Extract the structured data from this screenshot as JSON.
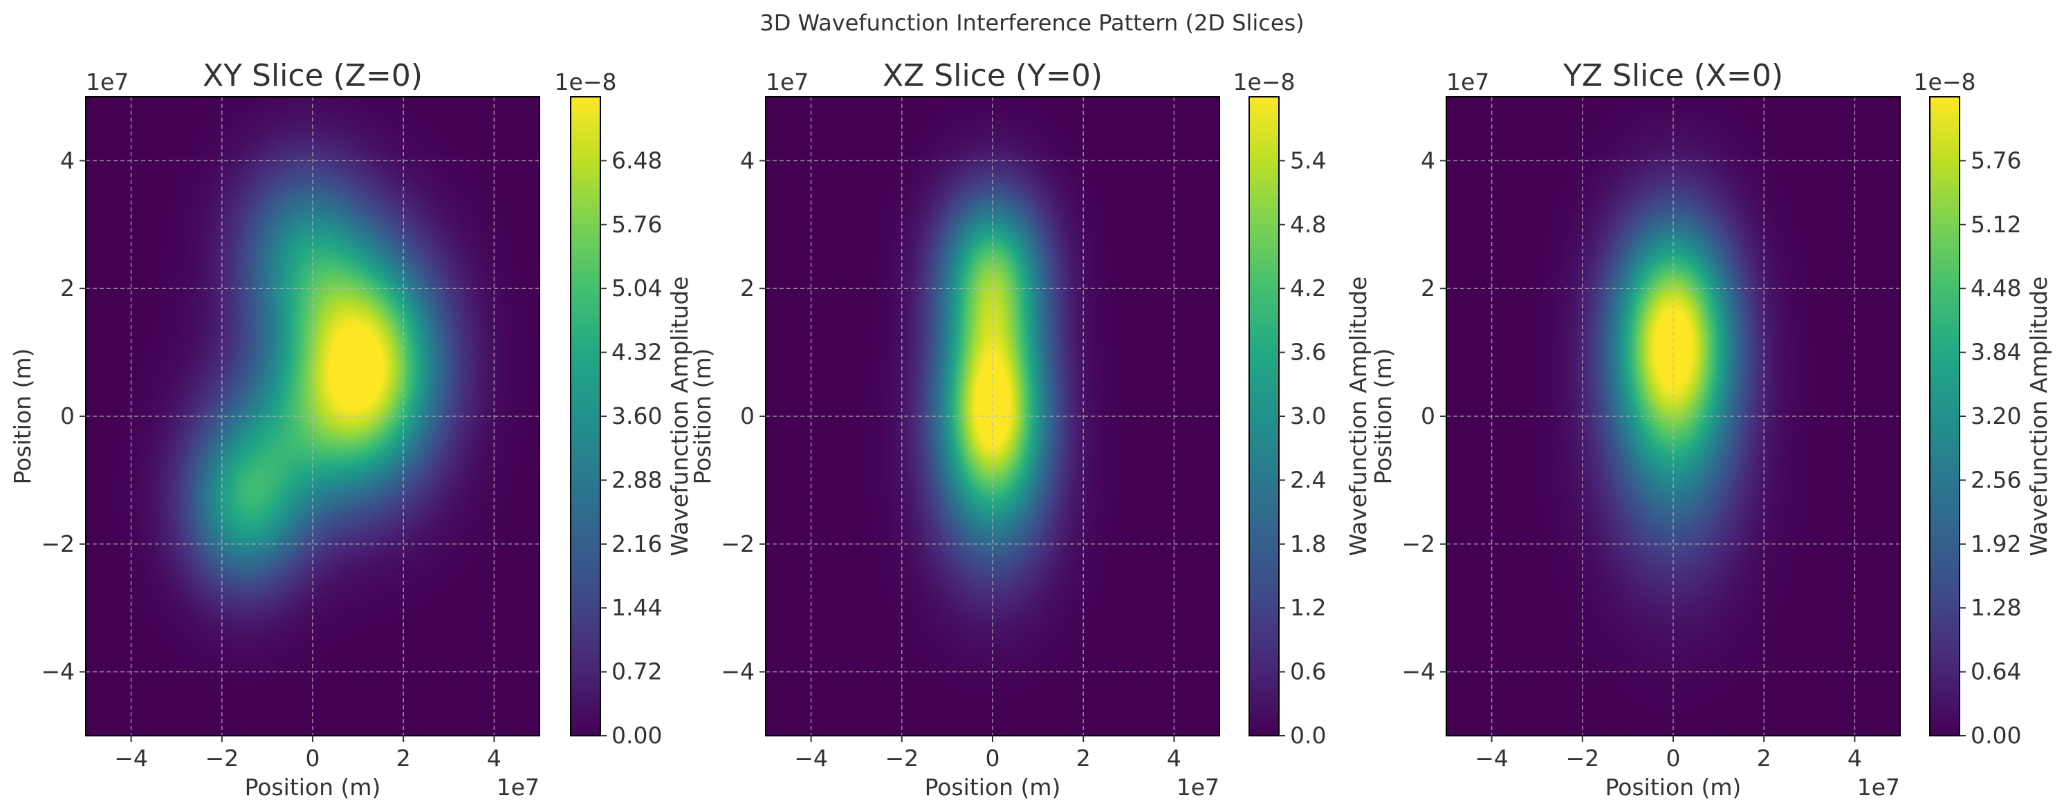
{
  "figure": {
    "suptitle": "3D Wavefunction Interference Pattern (2D Slices)"
  },
  "chart_data": [
    {
      "type": "heatmap",
      "title": "XY Slice (Z=0)",
      "xlabel": "Position (m)",
      "ylabel": "Position (m)",
      "x_offset_label": "1e7",
      "y_offset_label": "1e7",
      "xlim": [
        -50000000.0,
        50000000.0
      ],
      "ylim": [
        -50000000.0,
        50000000.0
      ],
      "x_ticks": [
        -40000000.0,
        -20000000.0,
        0,
        20000000.0,
        40000000.0
      ],
      "y_ticks": [
        -40000000.0,
        -20000000.0,
        0,
        20000000.0,
        40000000.0
      ],
      "x_tick_labels": [
        "−4",
        "−2",
        "0",
        "2",
        "4"
      ],
      "y_tick_labels": [
        "−4",
        "−2",
        "0",
        "2",
        "4"
      ],
      "grid": true,
      "colormap": "viridis",
      "colorbar": {
        "label": "Wavefunction Amplitude",
        "offset_label": "1e−8",
        "range": [
          0,
          7.2e-08
        ],
        "ticks": [
          0,
          7.2e-09,
          1.44e-08,
          2.16e-08,
          2.88e-08,
          3.6e-08,
          4.32e-08,
          5.04e-08,
          5.76e-08,
          6.48e-08
        ],
        "tick_labels": [
          "0.00",
          "0.72",
          "1.44",
          "2.16",
          "2.88",
          "3.60",
          "4.32",
          "5.04",
          "5.76",
          "6.48"
        ]
      },
      "peak_value": 7e-08,
      "components": [
        {
          "x": 12000000.0,
          "y": 8000000.0,
          "sx": 11000000.0,
          "sy": 12000000.0,
          "amp": 6.9e-08
        },
        {
          "x": -15000000.0,
          "y": -14000000.0,
          "sx": 9000000.0,
          "sy": 9000000.0,
          "amp": 3.9e-08
        },
        {
          "x": -2000000.0,
          "y": 25000000.0,
          "sx": 10000000.0,
          "sy": 10000000.0,
          "amp": 3.2e-08
        },
        {
          "x": -3000000.0,
          "y": -2000000.0,
          "sx": 12000000.0,
          "sy": 10000000.0,
          "amp": 2.5e-08
        }
      ]
    },
    {
      "type": "heatmap",
      "title": "XZ Slice (Y=0)",
      "xlabel": "Position (m)",
      "ylabel": "Position (m)",
      "x_offset_label": "1e7",
      "y_offset_label": "1e7",
      "xlim": [
        -50000000.0,
        50000000.0
      ],
      "ylim": [
        -50000000.0,
        50000000.0
      ],
      "x_ticks": [
        -40000000.0,
        -20000000.0,
        0,
        20000000.0,
        40000000.0
      ],
      "y_ticks": [
        -40000000.0,
        -20000000.0,
        0,
        20000000.0,
        40000000.0
      ],
      "x_tick_labels": [
        "−4",
        "−2",
        "0",
        "2",
        "4"
      ],
      "y_tick_labels": [
        "−4",
        "−2",
        "0",
        "2",
        "4"
      ],
      "grid": true,
      "colormap": "viridis",
      "colorbar": {
        "label": "Wavefunction Amplitude",
        "offset_label": "1e−8",
        "range": [
          0,
          6e-08
        ],
        "ticks": [
          0,
          6e-09,
          1.2e-08,
          1.8e-08,
          2.4e-08,
          3e-08,
          3.6e-08,
          4.2e-08,
          4.8e-08,
          5.4e-08
        ],
        "tick_labels": [
          "0.0",
          "0.6",
          "1.2",
          "1.8",
          "2.4",
          "3.0",
          "3.6",
          "4.2",
          "4.8",
          "5.4"
        ]
      },
      "peak_value": 5.8e-08,
      "components": [
        {
          "x": 0,
          "y": 2000000.0,
          "sx": 8000000.0,
          "sy": 10000000.0,
          "amp": 5.4e-08
        },
        {
          "x": 0,
          "y": 22000000.0,
          "sx": 8000000.0,
          "sy": 9000000.0,
          "amp": 4.3e-08
        },
        {
          "x": 0,
          "y": -12000000.0,
          "sx": 9000000.0,
          "sy": 11000000.0,
          "amp": 2e-08
        }
      ]
    },
    {
      "type": "heatmap",
      "title": "YZ Slice (X=0)",
      "xlabel": "Position (m)",
      "ylabel": "Position (m)",
      "x_offset_label": "1e7",
      "y_offset_label": "1e7",
      "xlim": [
        -50000000.0,
        50000000.0
      ],
      "ylim": [
        -50000000.0,
        50000000.0
      ],
      "x_ticks": [
        -40000000.0,
        -20000000.0,
        0,
        20000000.0,
        40000000.0
      ],
      "y_ticks": [
        -40000000.0,
        -20000000.0,
        0,
        20000000.0,
        40000000.0
      ],
      "x_tick_labels": [
        "−4",
        "−2",
        "0",
        "2",
        "4"
      ],
      "y_tick_labels": [
        "−4",
        "−2",
        "0",
        "2",
        "4"
      ],
      "grid": true,
      "colormap": "viridis",
      "colorbar": {
        "label": "Wavefunction Amplitude",
        "offset_label": "1e−8",
        "range": [
          0,
          6.4e-08
        ],
        "ticks": [
          0,
          6.4e-09,
          1.28e-08,
          1.92e-08,
          2.56e-08,
          3.2e-08,
          3.84e-08,
          4.48e-08,
          5.12e-08,
          5.76e-08
        ],
        "tick_labels": [
          "0.00",
          "0.64",
          "1.28",
          "1.92",
          "2.56",
          "3.20",
          "3.84",
          "4.48",
          "5.12",
          "5.76"
        ]
      },
      "peak_value": 6.3e-08,
      "components": [
        {
          "x": 0,
          "y": 13000000.0,
          "sx": 9000000.0,
          "sy": 12000000.0,
          "amp": 6e-08
        },
        {
          "x": 0,
          "y": -5000000.0,
          "sx": 10000000.0,
          "sy": 14000000.0,
          "amp": 2.2e-08
        }
      ]
    }
  ]
}
